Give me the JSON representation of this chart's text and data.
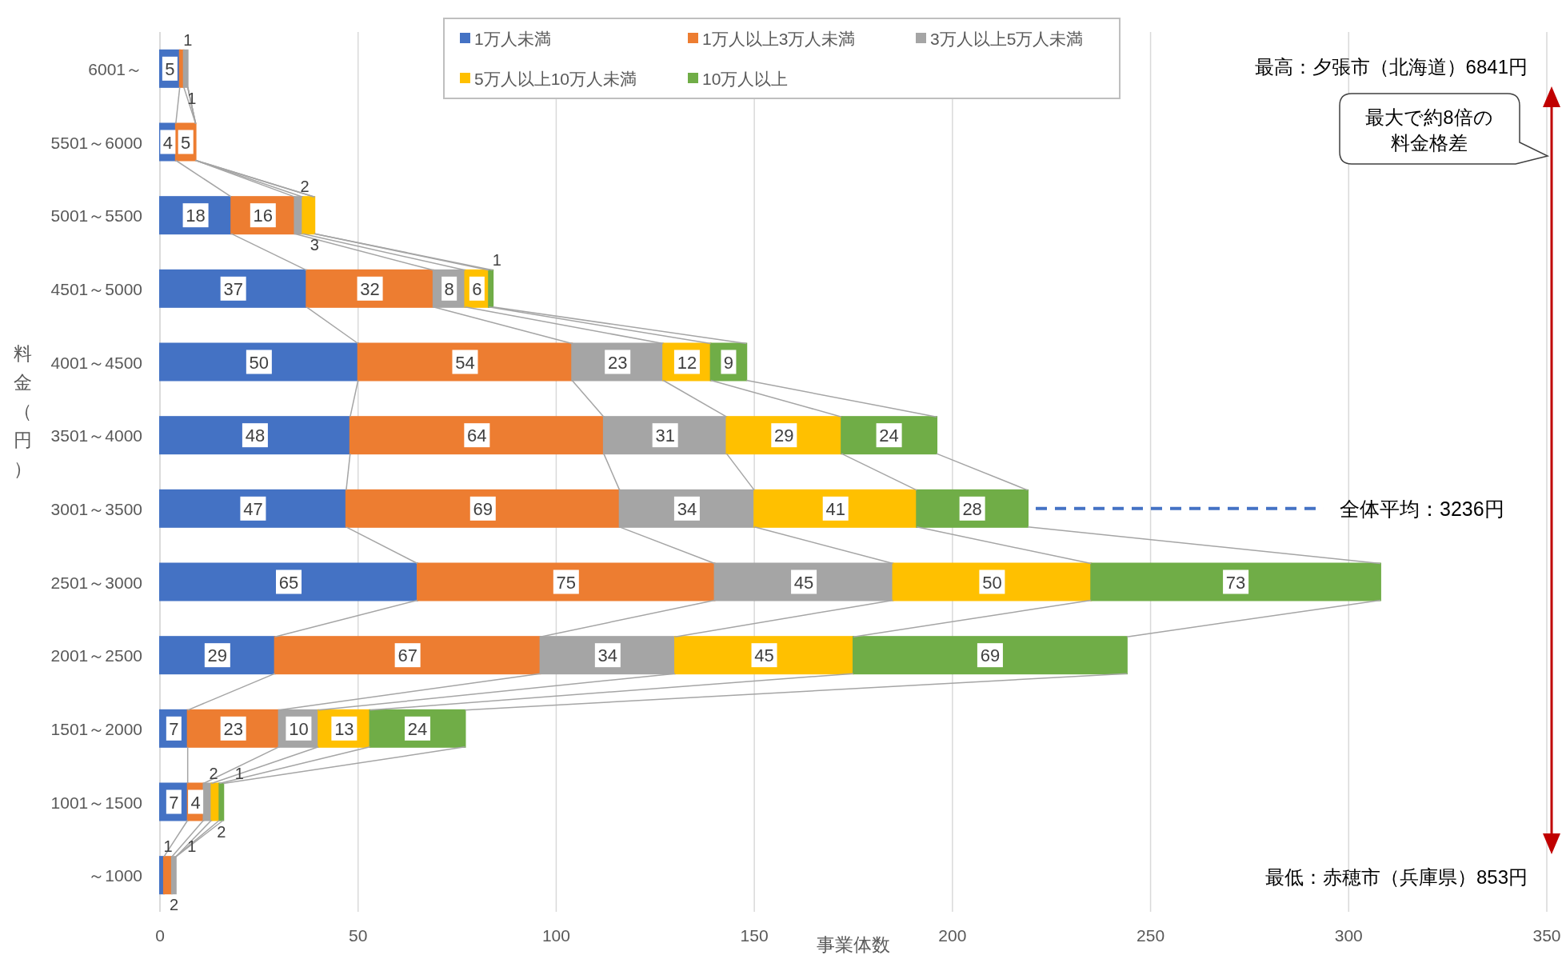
{
  "chart_data": {
    "type": "bar",
    "orientation": "horizontal",
    "stacked": true,
    "xlabel": "事業体数",
    "ylabel": "料金（円）",
    "categories": [
      "6001～",
      "5501～6000",
      "5001～5500",
      "4501～5000",
      "4001～4500",
      "3501～4000",
      "3001～3500",
      "2501～3000",
      "2001～2500",
      "1501～2000",
      "1001～1500",
      "～1000"
    ],
    "series": [
      {
        "name": "1万人未満",
        "color": "#4472c4",
        "values": [
          5,
          4,
          18,
          37,
          50,
          48,
          47,
          65,
          29,
          7,
          7,
          1
        ]
      },
      {
        "name": "1万人以上3万人未満",
        "color": "#ed7d31",
        "values": [
          1,
          5,
          16,
          32,
          54,
          64,
          69,
          75,
          67,
          23,
          4,
          2
        ]
      },
      {
        "name": "3万人以上5万人未満",
        "color": "#a5a5a5",
        "values": [
          1,
          null,
          2,
          8,
          23,
          31,
          34,
          45,
          34,
          10,
          2,
          1
        ]
      },
      {
        "name": "5万人以上10万人未満",
        "color": "#ffc000",
        "values": [
          null,
          null,
          3,
          6,
          12,
          29,
          41,
          50,
          45,
          13,
          2,
          null
        ]
      },
      {
        "name": "10万人以上",
        "color": "#70ad47",
        "values": [
          null,
          null,
          null,
          1,
          9,
          24,
          28,
          73,
          69,
          24,
          1,
          null
        ]
      }
    ],
    "xlim": [
      0,
      350
    ],
    "xticks": [
      0,
      50,
      100,
      150,
      200,
      250,
      300,
      350
    ],
    "grid": "x",
    "legend": "top",
    "data_labels": true,
    "ref_lines": [
      {
        "axis": "y",
        "value": "3001～3500",
        "label": "全体平均：3236円",
        "color": "#4472c4",
        "line_style": "dashed"
      }
    ],
    "annotations": [
      "最高：夕張市（北海道）6841円",
      "最大で約8倍の料金格差",
      "最低：赤穂市（兵庫県）853円"
    ]
  }
}
